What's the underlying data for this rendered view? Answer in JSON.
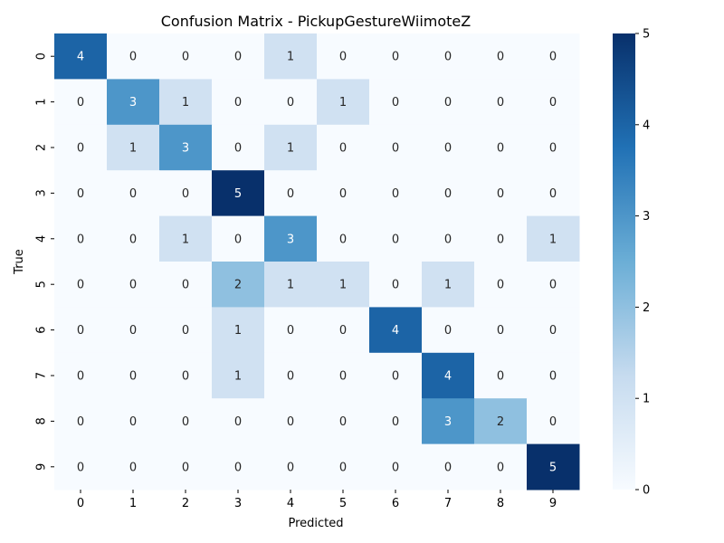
{
  "chart_data": {
    "type": "heatmap",
    "title": "Confusion Matrix - PickupGestureWiimoteZ",
    "xlabel": "Predicted",
    "ylabel": "True",
    "x_categories": [
      "0",
      "1",
      "2",
      "3",
      "4",
      "5",
      "6",
      "7",
      "8",
      "9"
    ],
    "y_categories": [
      "0",
      "1",
      "2",
      "3",
      "4",
      "5",
      "6",
      "7",
      "8",
      "9"
    ],
    "matrix": [
      [
        4,
        0,
        0,
        0,
        1,
        0,
        0,
        0,
        0,
        0
      ],
      [
        0,
        3,
        1,
        0,
        0,
        1,
        0,
        0,
        0,
        0
      ],
      [
        0,
        1,
        3,
        0,
        1,
        0,
        0,
        0,
        0,
        0
      ],
      [
        0,
        0,
        0,
        5,
        0,
        0,
        0,
        0,
        0,
        0
      ],
      [
        0,
        0,
        1,
        0,
        3,
        0,
        0,
        0,
        0,
        1
      ],
      [
        0,
        0,
        0,
        2,
        1,
        1,
        0,
        1,
        0,
        0
      ],
      [
        0,
        0,
        0,
        1,
        0,
        0,
        4,
        0,
        0,
        0
      ],
      [
        0,
        0,
        0,
        1,
        0,
        0,
        0,
        4,
        0,
        0
      ],
      [
        0,
        0,
        0,
        0,
        0,
        0,
        0,
        3,
        2,
        0
      ],
      [
        0,
        0,
        0,
        0,
        0,
        0,
        0,
        0,
        0,
        5
      ]
    ],
    "colorbar": {
      "min": 0,
      "max": 5,
      "ticks": [
        "0",
        "1",
        "2",
        "3",
        "4",
        "5"
      ]
    },
    "colormap": "Blues",
    "colormap_stops": [
      "#f7fbff",
      "#c6dbef",
      "#6baed6",
      "#2171b5",
      "#08306b"
    ],
    "grid": false
  }
}
